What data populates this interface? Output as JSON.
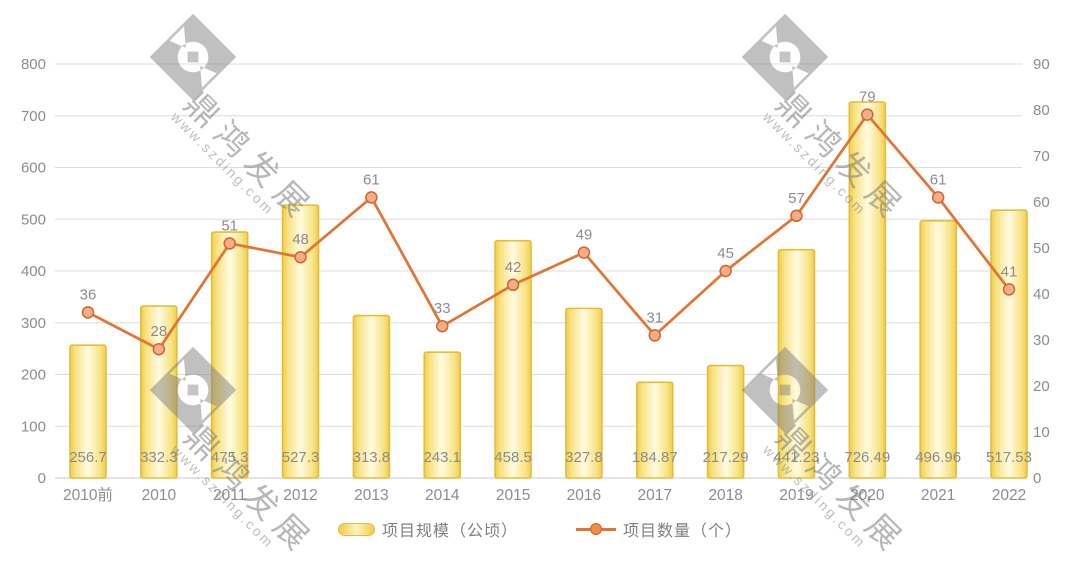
{
  "chart_data": {
    "type": "bar",
    "subtype": "combo-bar-line",
    "title": "",
    "categories": [
      "2010前",
      "2010",
      "2011",
      "2012",
      "2013",
      "2014",
      "2015",
      "2016",
      "2017",
      "2018",
      "2019",
      "2020",
      "2021",
      "2022"
    ],
    "series": [
      {
        "name": "项目规模（公顷）",
        "type": "bar",
        "axis": "left",
        "values": [
          256.7,
          332.3,
          475.3,
          527.3,
          313.8,
          243.1,
          458.5,
          327.8,
          184.87,
          217.29,
          441.23,
          726.49,
          496.96,
          517.53
        ]
      },
      {
        "name": "项目数量（个）",
        "type": "line",
        "axis": "right",
        "values": [
          36,
          28,
          51,
          48,
          61,
          33,
          42,
          49,
          31,
          45,
          57,
          79,
          61,
          41
        ]
      }
    ],
    "axis_left": {
      "min": 0,
      "max": 800,
      "step": 100
    },
    "axis_right": {
      "min": 0,
      "max": 90,
      "step": 10
    },
    "grid": true,
    "legend_position": "bottom",
    "data_labels": true
  },
  "legend": {
    "bar_label": "项目规模（公顷）",
    "line_label": "项目数量（个）"
  },
  "watermark": {
    "brand": "鼎鸿发展",
    "url": "www.szding.com"
  },
  "colors": {
    "bar_edge": "#f2cd49",
    "bar_mid": "#f8e386",
    "bar_center": "#fffbe2",
    "bar_border": "#e4be3a",
    "line": "#de7636",
    "marker_fill": "#f4ae85",
    "marker_stroke": "#d2652f",
    "grid": "#dcdcdc",
    "axis_line": "#c9c9c9",
    "axis_text": "#8c8c8c",
    "value_text": "#8c8c8c",
    "watermark": "#7c7c7c"
  }
}
